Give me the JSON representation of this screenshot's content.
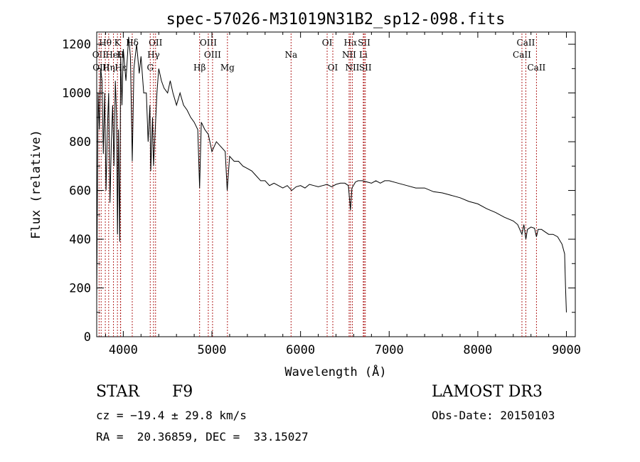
{
  "chart_data": {
    "type": "line",
    "title": "spec-57026-M31019N31B2_sp12-098.fits",
    "xlabel": "Wavelength (Å)",
    "ylabel": "Flux (relative)",
    "xlim": [
      3700,
      9100
    ],
    "ylim": [
      0,
      1250
    ],
    "x_ticks": [
      4000,
      5000,
      6000,
      7000,
      8000,
      9000
    ],
    "y_ticks": [
      0,
      200,
      400,
      600,
      800,
      1000,
      1200
    ],
    "series": [
      {
        "name": "flux",
        "x": [
          3700,
          3715,
          3730,
          3745,
          3760,
          3775,
          3790,
          3805,
          3820,
          3835,
          3850,
          3865,
          3880,
          3895,
          3910,
          3925,
          3934,
          3945,
          3960,
          3970,
          3985,
          4000,
          4030,
          4060,
          4080,
          4101,
          4120,
          4150,
          4180,
          4200,
          4230,
          4260,
          4280,
          4300,
          4310,
          4330,
          4341,
          4360,
          4380,
          4400,
          4430,
          4460,
          4500,
          4530,
          4560,
          4600,
          4640,
          4680,
          4720,
          4760,
          4800,
          4840,
          4861,
          4880,
          4920,
          4960,
          5000,
          5050,
          5100,
          5150,
          5172,
          5200,
          5250,
          5300,
          5350,
          5400,
          5450,
          5500,
          5550,
          5600,
          5650,
          5700,
          5750,
          5800,
          5850,
          5900,
          5950,
          6000,
          6050,
          6100,
          6150,
          6200,
          6250,
          6300,
          6350,
          6400,
          6450,
          6500,
          6540,
          6563,
          6580,
          6620,
          6650,
          6700,
          6750,
          6800,
          6850,
          6900,
          6950,
          7000,
          7100,
          7200,
          7300,
          7400,
          7500,
          7600,
          7700,
          7800,
          7900,
          8000,
          8100,
          8200,
          8300,
          8400,
          8450,
          8498,
          8520,
          8542,
          8560,
          8600,
          8640,
          8662,
          8680,
          8720,
          8760,
          8800,
          8850,
          8900,
          8950,
          8980,
          8990,
          9000
        ],
        "y": [
          150,
          1000,
          850,
          1100,
          1050,
          750,
          1000,
          600,
          850,
          1000,
          550,
          800,
          950,
          700,
          1050,
          900,
          420,
          850,
          390,
          1150,
          950,
          1180,
          1050,
          1230,
          1150,
          720,
          1100,
          1200,
          1080,
          1150,
          1000,
          1000,
          800,
          950,
          680,
          900,
          700,
          850,
          1000,
          1100,
          1050,
          1020,
          1000,
          1050,
          1000,
          950,
          1000,
          950,
          930,
          900,
          880,
          850,
          610,
          880,
          850,
          830,
          760,
          800,
          780,
          760,
          600,
          740,
          720,
          720,
          700,
          690,
          680,
          660,
          640,
          640,
          620,
          630,
          620,
          610,
          620,
          600,
          615,
          620,
          610,
          625,
          620,
          615,
          620,
          625,
          615,
          625,
          630,
          630,
          620,
          520,
          610,
          635,
          640,
          640,
          635,
          630,
          640,
          630,
          640,
          640,
          630,
          620,
          610,
          610,
          595,
          590,
          580,
          570,
          555,
          545,
          525,
          510,
          490,
          475,
          460,
          420,
          460,
          400,
          440,
          450,
          445,
          410,
          440,
          440,
          430,
          420,
          420,
          410,
          380,
          340,
          200,
          100
        ]
      }
    ],
    "lines": [
      {
        "label": "Hθ",
        "wl": 3797,
        "row": 0
      },
      {
        "label": "K",
        "wl": 3934,
        "row": 0
      },
      {
        "label": "Hδ",
        "wl": 4101,
        "row": 0
      },
      {
        "label": "OII",
        "wl": 4364,
        "row": 0
      },
      {
        "label": "OIII",
        "wl": 4959,
        "row": 0
      },
      {
        "label": "OI",
        "wl": 6300,
        "row": 0
      },
      {
        "label": "Hα",
        "wl": 6563,
        "row": 0
      },
      {
        "label": "SII",
        "wl": 6717,
        "row": 0
      },
      {
        "label": "CaII",
        "wl": 8542,
        "row": 0
      },
      {
        "label": "OII",
        "wl": 3727,
        "row": 1
      },
      {
        "label": "HeI",
        "wl": 3889,
        "row": 1
      },
      {
        "label": "H",
        "wl": 3968,
        "row": 1
      },
      {
        "label": "Hγ",
        "wl": 4341,
        "row": 1
      },
      {
        "label": "OIII",
        "wl": 5007,
        "row": 1
      },
      {
        "label": "Na",
        "wl": 5893,
        "row": 1
      },
      {
        "label": "NII",
        "wl": 6548,
        "row": 1
      },
      {
        "label": "Li",
        "wl": 6708,
        "row": 1
      },
      {
        "label": "CaII",
        "wl": 8498,
        "row": 1
      },
      {
        "label": "OIII",
        "wl": 3750,
        "row": 2
      },
      {
        "label": "Hη",
        "wl": 3835,
        "row": 2
      },
      {
        "label": "Hε",
        "wl": 3970,
        "row": 2
      },
      {
        "label": "G",
        "wl": 4304,
        "row": 2
      },
      {
        "label": "Hβ",
        "wl": 4861,
        "row": 2
      },
      {
        "label": "Mg",
        "wl": 5175,
        "row": 2
      },
      {
        "label": "OI",
        "wl": 6364,
        "row": 2
      },
      {
        "label": "NII",
        "wl": 6584,
        "row": 2
      },
      {
        "label": "SII",
        "wl": 6731,
        "row": 2
      },
      {
        "label": "CaII",
        "wl": 8662,
        "row": 2
      }
    ]
  },
  "info": {
    "class_label": "STAR",
    "subclass": "F9",
    "survey": "LAMOST DR3",
    "cz": "cz = −19.4 ± 29.8 km/s",
    "obs_date": "Obs-Date: 20150103",
    "radec": "RA =  20.36859, DEC =  33.15027"
  },
  "colors": {
    "line_marker": "#b22222",
    "spectrum": "#000000"
  }
}
